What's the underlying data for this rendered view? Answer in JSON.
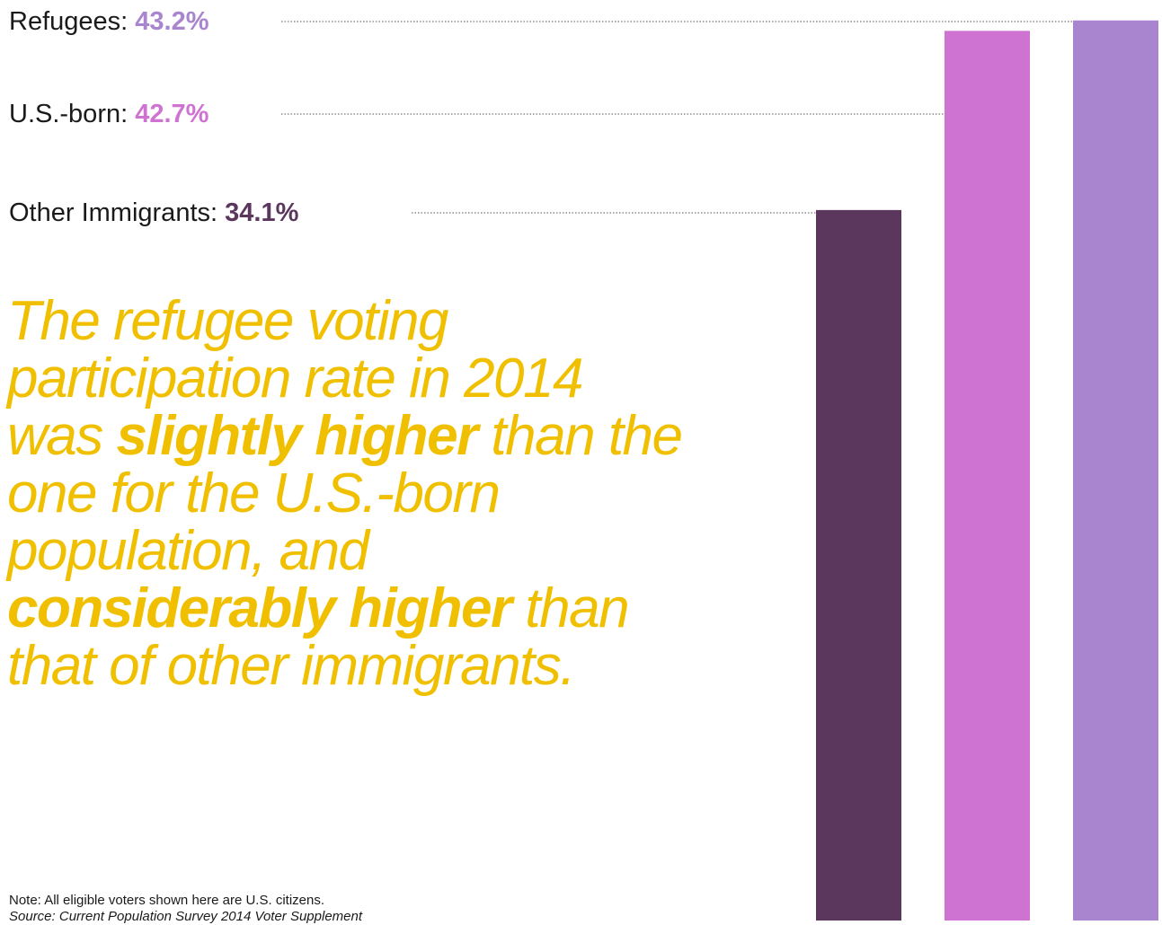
{
  "chart_data": {
    "type": "bar",
    "categories": [
      "Other Immigrants",
      "U.S.-born",
      "Refugees"
    ],
    "values": [
      34.1,
      42.7,
      43.2
    ],
    "colors": [
      "#5b375e",
      "#cf73d3",
      "#a984cf"
    ],
    "labels": [
      {
        "name": "Refugees",
        "text": "Refugees:",
        "value_text": "43.2%",
        "color": "#a984cf"
      },
      {
        "name": "U.S.-born",
        "text": "U.S.-born:",
        "value_text": "42.7%",
        "color": "#cf73d3"
      },
      {
        "name": "Other Immigrants",
        "text": "Other Immigrants:",
        "value_text": "34.1%",
        "color": "#5b375e"
      }
    ],
    "grid": false,
    "leader_lines": "dotted"
  },
  "headline": {
    "part1": "The refugee voting participation rate in 2014 was ",
    "bold1": "slightly higher",
    "part2": " than the one for the U.S.-born population, and ",
    "bold2": "considerably higher",
    "part3": " than that of other immigrants.",
    "color": "#f0c000"
  },
  "note": {
    "text": "Note: All eligible voters shown here are U.S. citizens.",
    "source": "Source: Current Population Survey 2014 Voter Supplement"
  }
}
